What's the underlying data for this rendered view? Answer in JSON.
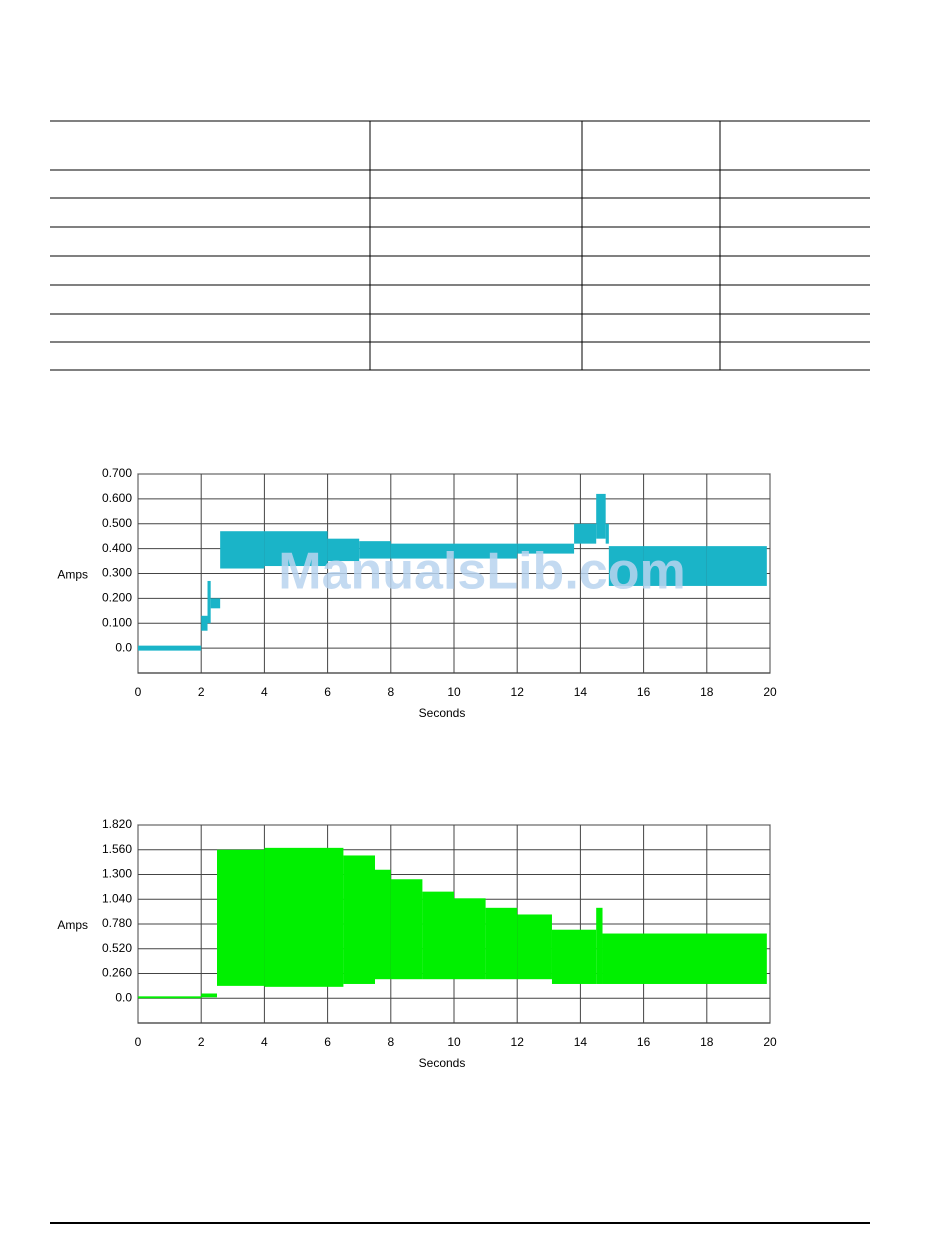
{
  "watermark": "ManualsLib.com",
  "chart_data": [
    {
      "type": "band",
      "ylabel": "Amps",
      "xlabel": "Seconds",
      "color": "#1ab4c8",
      "grid": true,
      "xlim": [
        0,
        20
      ],
      "xticks": [
        0,
        2,
        4,
        6,
        8,
        10,
        12,
        14,
        16,
        18,
        20
      ],
      "ylim": [
        -0.1,
        0.7
      ],
      "yticks": [
        {
          "value": 0,
          "label": "0.0"
        },
        {
          "value": 0.1,
          "label": "0.100"
        },
        {
          "value": 0.2,
          "label": "0.200"
        },
        {
          "value": 0.3,
          "label": "0.300"
        },
        {
          "value": 0.4,
          "label": "0.400"
        },
        {
          "value": 0.5,
          "label": "0.500"
        },
        {
          "value": 0.6,
          "label": "0.600"
        },
        {
          "value": 0.7,
          "label": "0.700"
        }
      ],
      "bins": [
        0,
        2,
        2.2,
        2.3,
        2.6,
        4,
        5,
        6,
        7,
        8,
        10,
        12,
        13.8,
        14.5,
        14.8,
        14.9,
        16,
        18,
        19.9
      ],
      "low": [
        -0.01,
        0.07,
        0.1,
        0.16,
        0.32,
        0.33,
        0.33,
        0.35,
        0.36,
        0.36,
        0.36,
        0.38,
        0.42,
        0.44,
        0.42,
        0.25,
        0.25,
        0.25
      ],
      "high": [
        0.01,
        0.13,
        0.27,
        0.2,
        0.47,
        0.47,
        0.47,
        0.44,
        0.43,
        0.42,
        0.42,
        0.42,
        0.5,
        0.62,
        0.5,
        0.41,
        0.41,
        0.41
      ]
    },
    {
      "type": "band",
      "ylabel": "Amps",
      "xlabel": "Seconds",
      "color": "#00f000",
      "grid": true,
      "xlim": [
        0,
        20
      ],
      "xticks": [
        0,
        2,
        4,
        6,
        8,
        10,
        12,
        14,
        16,
        18,
        20
      ],
      "ylim": [
        -0.26,
        1.82
      ],
      "yticks": [
        {
          "value": 0,
          "label": "0.0"
        },
        {
          "value": 0.26,
          "label": "0.260"
        },
        {
          "value": 0.52,
          "label": "0.520"
        },
        {
          "value": 0.78,
          "label": "0.780"
        },
        {
          "value": 1.04,
          "label": "1.040"
        },
        {
          "value": 1.3,
          "label": "1.300"
        },
        {
          "value": 1.56,
          "label": "1.560"
        },
        {
          "value": 1.82,
          "label": "1.820"
        }
      ],
      "bins": [
        0,
        2,
        2.5,
        4,
        6.5,
        7.5,
        8,
        9,
        10,
        11,
        12,
        13.1,
        14.5,
        14.7,
        19.9
      ],
      "low": [
        0,
        0.01,
        0.13,
        0.12,
        0.15,
        0.2,
        0.2,
        0.2,
        0.2,
        0.2,
        0.2,
        0.15,
        0.15,
        0.15
      ],
      "high": [
        0.02,
        0.05,
        1.56,
        1.58,
        1.5,
        1.35,
        1.25,
        1.12,
        1.05,
        0.95,
        0.88,
        0.72,
        0.95,
        0.68
      ]
    }
  ]
}
